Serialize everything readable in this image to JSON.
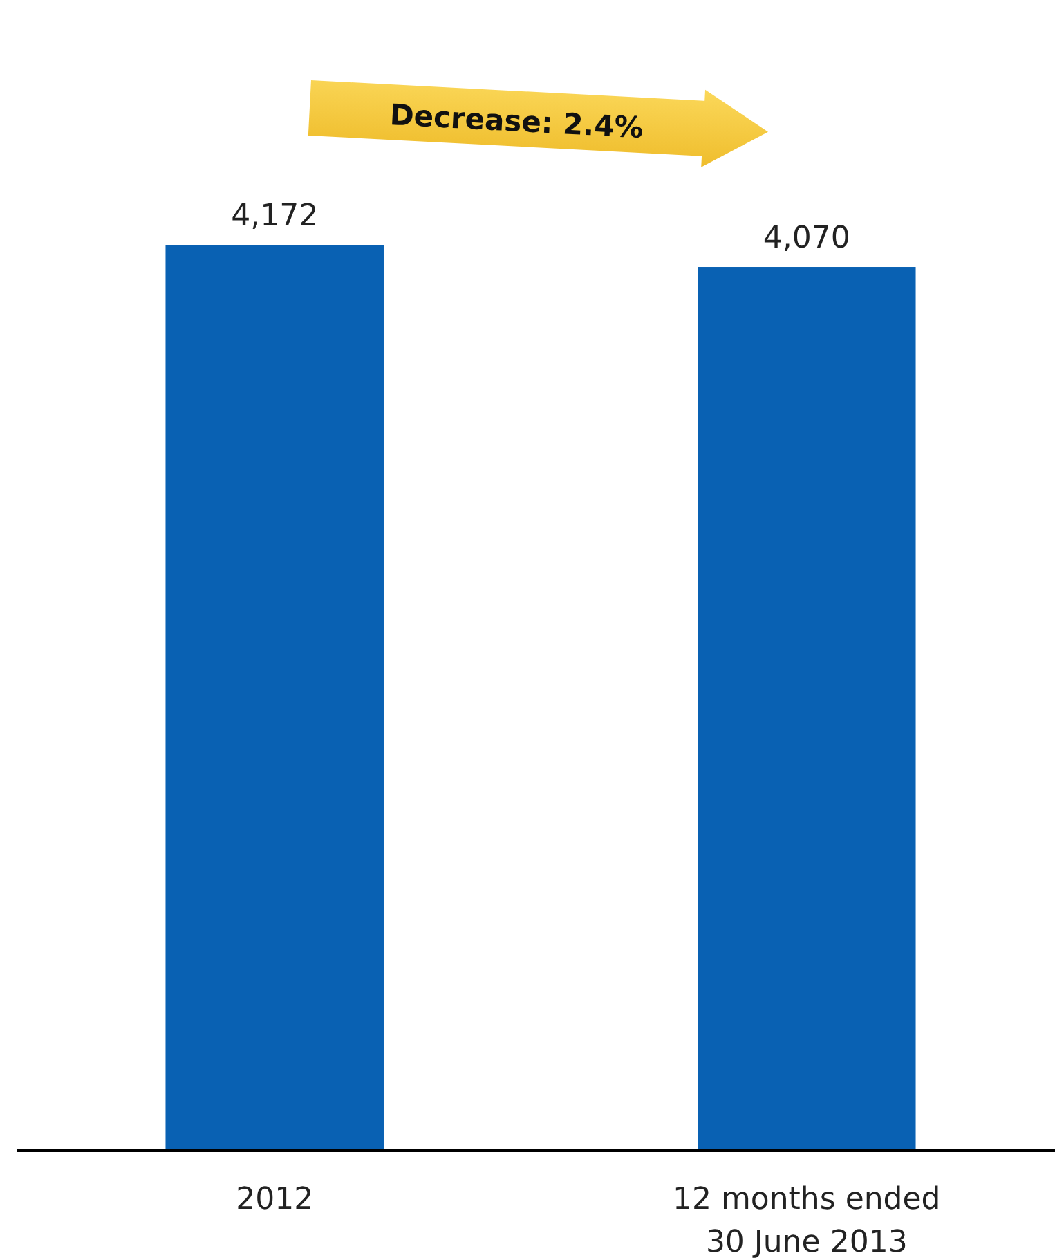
{
  "chart_data": {
    "type": "bar",
    "categories": [
      "2012",
      "12 months ended 30 June 2013"
    ],
    "values": [
      4172,
      4070
    ],
    "value_labels": [
      "4,172",
      "4,070"
    ],
    "color": "#0961b3",
    "annotations": [
      "Decrease: 2.4%"
    ]
  }
}
